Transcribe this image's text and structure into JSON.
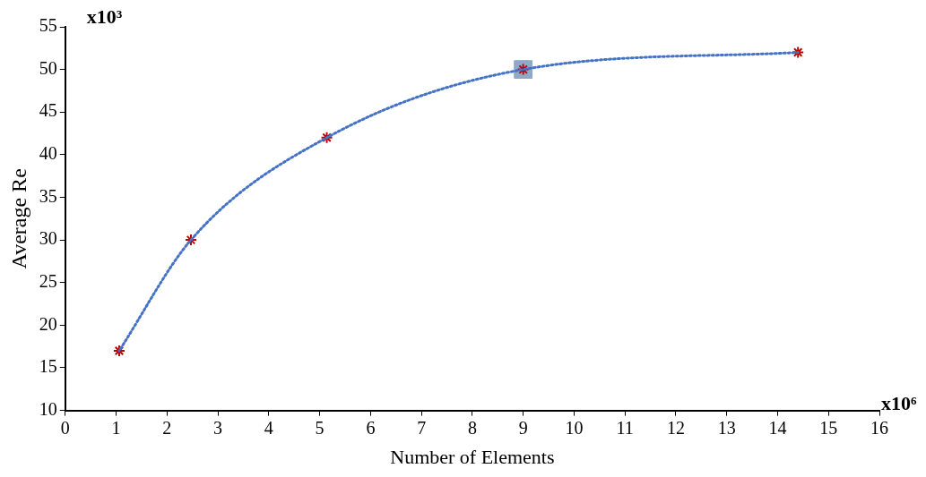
{
  "chart_data": {
    "type": "line",
    "xlabel": "Number of Elements",
    "ylabel": "Average Re",
    "annotations": [
      "x10³",
      "x10⁶"
    ],
    "x": [
      1.06,
      2.47,
      5.14,
      9.0,
      14.4
    ],
    "series": [
      {
        "type": "line",
        "color": "#4472c4",
        "values": [
          17,
          30,
          42,
          50,
          52
        ],
        "marker": "none",
        "line_style": "dotted"
      },
      {
        "type": "scatter",
        "color": "#c00000",
        "values": [
          17,
          30,
          42,
          50,
          52
        ],
        "marker": "cross"
      },
      {
        "type": "scatter",
        "color": "#8ea9c9",
        "x": [
          9.0
        ],
        "values": [
          50
        ],
        "marker": "square"
      }
    ],
    "xlim": [
      0,
      16
    ],
    "xticks": [
      0,
      1,
      2,
      3,
      4,
      5,
      6,
      7,
      8,
      9,
      10,
      11,
      12,
      13,
      14,
      15,
      16
    ],
    "ylim": [
      10,
      55
    ],
    "yticks": [
      10,
      15,
      20,
      25,
      30,
      35,
      40,
      45,
      50,
      55
    ],
    "grid": false,
    "legend": false
  }
}
